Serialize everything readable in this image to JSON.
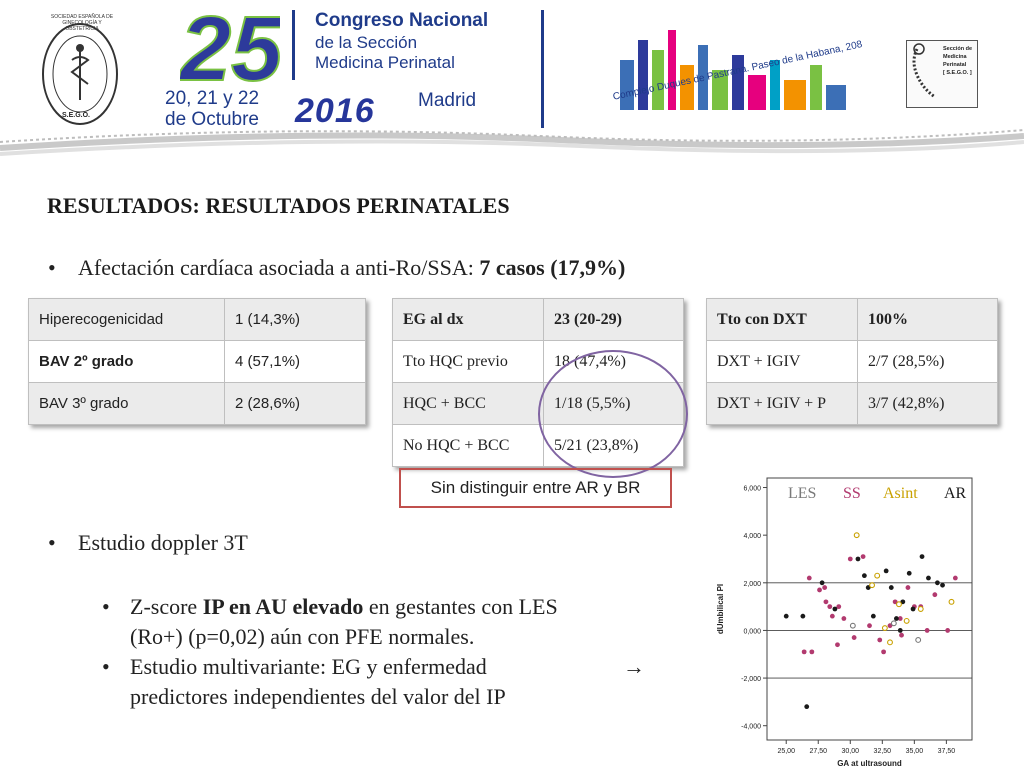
{
  "header": {
    "number": "25",
    "congress_title": "Congreso Nacional",
    "congress_sub1": "de la Sección",
    "congress_sub2": "Medicina Perinatal",
    "dates_line1": "20, 21 y 22",
    "dates_line2": "de Octubre",
    "year": "2016",
    "city": "Madrid",
    "venue": "Complejo Duques de Pastrana. Paseo de la Habana, 208",
    "seal_left_text": "SOCIEDAD ESPAÑOLA DE GINECOLOGÍA Y OBSTETRICIA",
    "seal_left_abbr": "S.E.G.O.",
    "seal_right_line1": "Sección de",
    "seal_right_line2": "Medicina",
    "seal_right_line3": "Perinatal",
    "seal_right_line4": "[ S.E.G.O. ]"
  },
  "section_title": "RESULTADOS: RESULTADOS PERINATALES",
  "bullet1": {
    "text": "Afectación cardíaca asociada a anti-Ro/SSA: ",
    "bold": "7 casos (17,9%)"
  },
  "table1": [
    [
      "Hiperecogenicidad",
      "1 (14,3%)"
    ],
    [
      "BAV 2º grado",
      "4 (57,1%)"
    ],
    [
      "BAV 3º grado",
      "2 (28,6%)"
    ]
  ],
  "table2": [
    [
      "EG al dx",
      "23 (20-29)"
    ],
    [
      "Tto HQC previo",
      "18 (47,4%)"
    ],
    [
      "HQC + BCC",
      "1/18 (5,5%)"
    ],
    [
      "No HQC + BCC",
      "5/21 (23,8%)"
    ]
  ],
  "table3": [
    [
      "Tto con DXT",
      "100%"
    ],
    [
      "DXT + IGIV",
      "2/7 (28,5%)"
    ],
    [
      "DXT + IGIV + P",
      "3/7 (42,8%)"
    ]
  ],
  "note": "Sin distinguir entre AR y BR",
  "bullet2": "Estudio doppler 3T",
  "sub1": {
    "pre": "Z-score ",
    "bold": "IP en AU elevado",
    "post": " en gestantes con LES",
    "line2": "(Ro+) (p=0,02) aún con PFE normales."
  },
  "sub2": {
    "line1": "Estudio multivariante: EG y enfermedad",
    "arrow": "→",
    "line2": "predictores independientes del valor del IP"
  },
  "legend": {
    "les": "LES",
    "ss": "SS",
    "asint": "Asint",
    "ar": "AR",
    "colors": {
      "les": "#7a7a7a",
      "ss": "#b23a6f",
      "asint": "#c9a100",
      "ar": "#1a1a1a"
    }
  },
  "chart_data": {
    "type": "scatter",
    "xlabel": "GA at ultrasound",
    "ylabel": "dUmbilical PI",
    "xlim": [
      23.5,
      39.5
    ],
    "ylim": [
      -4.6,
      6.4
    ],
    "x_ticks": [
      "25,00",
      "27,50",
      "30,00",
      "32,50",
      "35,00",
      "37,50"
    ],
    "y_ticks": [
      "6,000",
      "4,000",
      "2,000",
      "0,000",
      "-2,000",
      "-4,000"
    ],
    "reference_lines_y": [
      2,
      0,
      -2
    ],
    "series": [
      {
        "name": "SS",
        "color": "#b23a6f",
        "marker": "filled",
        "x": [
          26.8,
          27.0,
          27.6,
          28.1,
          28.4,
          28.6,
          29.0,
          29.1,
          29.5,
          30.0,
          30.3,
          31.0,
          31.5,
          32.3,
          32.6,
          33.1,
          33.5,
          33.9,
          34.0,
          34.5,
          35.0,
          35.5,
          36.0,
          36.6,
          37.6,
          38.2,
          26.4,
          28.0
        ],
        "y": [
          2.2,
          -0.9,
          1.7,
          1.2,
          1.0,
          0.6,
          -0.6,
          1.0,
          0.5,
          3.0,
          -0.3,
          3.1,
          0.2,
          -0.4,
          -0.9,
          0.2,
          1.2,
          0.5,
          -0.2,
          1.8,
          1.0,
          1.0,
          0.0,
          1.5,
          0.0,
          2.2,
          -0.9,
          1.8
        ]
      },
      {
        "name": "AR",
        "color": "#1a1a1a",
        "marker": "filled",
        "x": [
          25.0,
          26.3,
          27.8,
          28.8,
          30.6,
          31.1,
          31.8,
          32.8,
          33.2,
          33.6,
          34.1,
          34.6,
          34.9,
          35.6,
          36.1,
          36.8,
          37.2,
          26.6,
          31.4,
          33.9
        ],
        "y": [
          0.6,
          0.6,
          2.0,
          0.9,
          3.0,
          2.3,
          0.6,
          2.5,
          1.8,
          0.5,
          1.2,
          2.4,
          0.9,
          3.1,
          2.2,
          2.0,
          1.9,
          -3.2,
          1.8,
          0.0
        ]
      },
      {
        "name": "Asint",
        "color": "#c9a100",
        "marker": "open",
        "x": [
          30.5,
          32.1,
          32.7,
          33.8,
          34.4,
          35.5,
          37.9,
          33.1,
          31.7
        ],
        "y": [
          4.0,
          2.3,
          0.1,
          1.1,
          0.4,
          0.9,
          1.2,
          -0.5,
          1.9
        ]
      },
      {
        "name": "LES",
        "color": "#7a7a7a",
        "marker": "open",
        "x": [
          30.2,
          33.4,
          35.3
        ],
        "y": [
          0.2,
          0.3,
          -0.4
        ]
      }
    ]
  }
}
